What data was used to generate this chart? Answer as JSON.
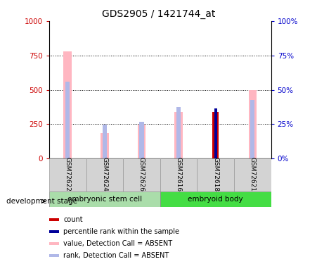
{
  "title": "GDS2905 / 1421744_at",
  "samples": [
    "GSM72622",
    "GSM72624",
    "GSM72626",
    "GSM72616",
    "GSM72618",
    "GSM72621"
  ],
  "value_absent": [
    780,
    185,
    245,
    340,
    0,
    495
  ],
  "rank_absent": [
    560,
    245,
    265,
    375,
    0,
    425
  ],
  "count": [
    0,
    0,
    0,
    0,
    340,
    0
  ],
  "percentile": [
    0,
    0,
    0,
    0,
    365,
    0
  ],
  "ylim_left": [
    0,
    1000
  ],
  "ylim_right": [
    0,
    100
  ],
  "left_ticks": [
    0,
    250,
    500,
    750,
    1000
  ],
  "right_ticks": [
    0,
    25,
    50,
    75,
    100
  ],
  "color_value_absent": "#ffb6c1",
  "color_rank_absent": "#b0b8e8",
  "color_count": "#cc0000",
  "color_percentile": "#000099",
  "group1_label": "embryonic stem cell",
  "group2_label": "embryoid body",
  "group1_color": "#aaddaa",
  "group2_color": "#44dd44",
  "tick_color_left": "#cc0000",
  "tick_color_right": "#0000cc",
  "legend_items": [
    [
      "#cc0000",
      "count"
    ],
    [
      "#000099",
      "percentile rank within the sample"
    ],
    [
      "#ffb6c1",
      "value, Detection Call = ABSENT"
    ],
    [
      "#b0b8e8",
      "rank, Detection Call = ABSENT"
    ]
  ]
}
